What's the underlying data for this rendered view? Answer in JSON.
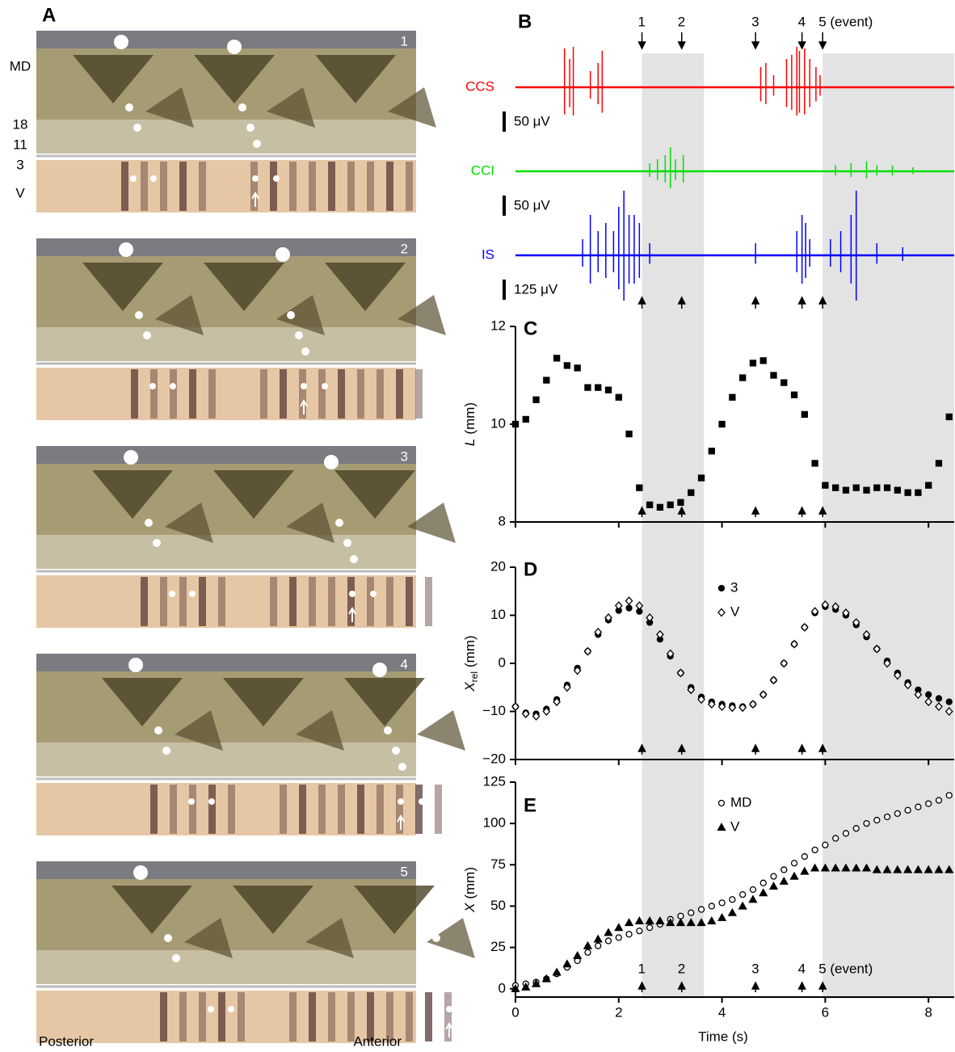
{
  "panel_a": {
    "title": "A",
    "labels": [
      "MD",
      "18",
      "11",
      "3",
      "V"
    ],
    "frames": [
      "1",
      "2",
      "3",
      "4",
      "5"
    ],
    "posterior": "Posterior",
    "anterior": "Anterior"
  },
  "chart_data": [
    {
      "type": "trace",
      "title": "B",
      "xlim": [
        0,
        8.5
      ],
      "events": {
        "x": [
          2.45,
          3.22,
          4.65,
          5.55,
          5.95
        ],
        "labels": [
          "1",
          "2",
          "3",
          "4",
          "5 (event)"
        ]
      },
      "shaded": [
        [
          2.45,
          3.65
        ],
        [
          5.95,
          8.5
        ]
      ],
      "series": [
        {
          "name": "CCS",
          "color": "#ff0000",
          "scale_bar": {
            "value": 50,
            "label": "50 μV"
          },
          "x": [
            0.95,
            1.05,
            1.12,
            1.45,
            1.6,
            1.68,
            4.75,
            4.85,
            5.0,
            5.25,
            5.35,
            5.45,
            5.5,
            5.6,
            5.7,
            5.82,
            5.9
          ],
          "values": [
            96,
            70,
            100,
            40,
            60,
            90,
            50,
            60,
            30,
            70,
            80,
            100,
            90,
            96,
            70,
            50,
            30
          ]
        },
        {
          "name": "CCI",
          "color": "#00e000",
          "scale_bar": {
            "value": 50,
            "label": "50 μV"
          },
          "x": [
            2.6,
            2.75,
            2.9,
            3.0,
            3.1,
            3.25,
            6.2,
            6.5,
            6.8,
            7.0,
            7.3,
            7.7
          ],
          "values": [
            20,
            30,
            40,
            60,
            30,
            40,
            15,
            20,
            25,
            15,
            15,
            10
          ]
        },
        {
          "name": "IS",
          "color": "#0000ff",
          "scale_bar": {
            "value": 125,
            "label": "125 μV"
          },
          "x": [
            1.3,
            1.45,
            1.6,
            1.75,
            1.9,
            2.0,
            2.1,
            2.2,
            2.3,
            2.4,
            2.6,
            4.65,
            5.45,
            5.55,
            5.62,
            5.7,
            6.1,
            6.3,
            6.5,
            6.6,
            7.0,
            7.5
          ],
          "values": [
            100,
            250,
            150,
            200,
            150,
            300,
            400,
            250,
            250,
            200,
            75,
            75,
            150,
            250,
            200,
            100,
            100,
            150,
            250,
            400,
            75,
            50
          ]
        }
      ]
    },
    {
      "type": "scatter",
      "title": "C",
      "xlim": [
        0,
        8.5
      ],
      "xticks": [
        0,
        2,
        4,
        6,
        8
      ],
      "ylim": [
        8,
        12
      ],
      "yticks": [
        8,
        10,
        12
      ],
      "ylabel": {
        "symbol": "L",
        "unit": "(mm)"
      },
      "x": [
        0,
        0.2,
        0.4,
        0.6,
        0.8,
        1.0,
        1.2,
        1.4,
        1.6,
        1.8,
        2.0,
        2.2,
        2.4,
        2.6,
        2.8,
        3.0,
        3.2,
        3.4,
        3.6,
        3.8,
        4.0,
        4.2,
        4.4,
        4.6,
        4.8,
        5.0,
        5.2,
        5.4,
        5.6,
        5.8,
        6.0,
        6.2,
        6.4,
        6.6,
        6.8,
        7.0,
        7.2,
        7.4,
        7.6,
        7.8,
        8.0,
        8.2,
        8.4
      ],
      "series": [
        {
          "color": "#000000",
          "marker": "square",
          "filled": true,
          "values": [
            10.0,
            10.1,
            10.5,
            10.9,
            11.35,
            11.2,
            11.15,
            10.75,
            10.75,
            10.7,
            10.55,
            9.8,
            8.7,
            8.35,
            8.3,
            8.35,
            8.4,
            8.6,
            8.9,
            9.45,
            10.0,
            10.55,
            10.95,
            11.25,
            11.3,
            11.0,
            10.85,
            10.6,
            10.2,
            9.2,
            8.75,
            8.7,
            8.65,
            8.7,
            8.65,
            8.7,
            8.7,
            8.65,
            8.6,
            8.6,
            8.75,
            9.2,
            10.15
          ]
        }
      ]
    },
    {
      "type": "scatter",
      "title": "D",
      "xlim": [
        0,
        8.5
      ],
      "xticks": [
        0,
        2,
        4,
        6,
        8
      ],
      "ylim": [
        -20,
        20
      ],
      "yticks": [
        {
          "value": -20,
          "label": "−20"
        },
        {
          "value": -10,
          "label": "−10"
        },
        0,
        10,
        20
      ],
      "ylabel": {
        "symbol": "X",
        "sub": "rel",
        "unit": "(mm)"
      },
      "x": [
        0,
        0.2,
        0.4,
        0.6,
        0.8,
        1.0,
        1.2,
        1.4,
        1.6,
        1.8,
        2.0,
        2.2,
        2.4,
        2.6,
        2.8,
        3.0,
        3.2,
        3.4,
        3.6,
        3.8,
        4.0,
        4.2,
        4.4,
        4.6,
        4.8,
        5.0,
        5.2,
        5.4,
        5.6,
        5.8,
        6.0,
        6.2,
        6.4,
        6.6,
        6.8,
        7.0,
        7.2,
        7.4,
        7.6,
        7.8,
        8.0,
        8.2,
        8.4
      ],
      "series": [
        {
          "name": "3",
          "color": "#000000",
          "marker": "circle",
          "filled": true,
          "values": [
            -9,
            -10.3,
            -10.5,
            -9.5,
            -7.5,
            -4.5,
            -1,
            2.5,
            6,
            9,
            11,
            11.5,
            10.8,
            8.5,
            5,
            1.5,
            -2,
            -5,
            -7,
            -8,
            -8.5,
            -8.8,
            -9,
            -8.5,
            -6.5,
            -3.5,
            0,
            4,
            7.5,
            10.5,
            11.8,
            11.2,
            10,
            8,
            5.5,
            3,
            0.5,
            -2,
            -4,
            -5.5,
            -6.5,
            -7.3,
            -8
          ]
        },
        {
          "name": "V",
          "color": "#000000",
          "marker": "diamond",
          "filled": false,
          "values": [
            -9,
            -10.5,
            -11,
            -10,
            -8,
            -5,
            -1.5,
            2.5,
            6.5,
            9.5,
            12,
            13,
            12,
            9.5,
            6,
            2,
            -2,
            -5.5,
            -7.5,
            -8.5,
            -9,
            -9.2,
            -9.2,
            -8.5,
            -6.5,
            -3.5,
            0,
            4,
            7.5,
            10.8,
            12.2,
            11.8,
            10.5,
            8.5,
            6,
            3,
            0,
            -2.5,
            -4.5,
            -6.5,
            -8,
            -9,
            -10
          ]
        }
      ]
    },
    {
      "type": "scatter",
      "title": "E",
      "xlim": [
        0,
        8.5
      ],
      "xticks": [
        0,
        2,
        4,
        6,
        8
      ],
      "xlabel": "Time (s)",
      "ylim": [
        -5,
        125
      ],
      "yticks": [
        0,
        25,
        50,
        75,
        100,
        125
      ],
      "ylabel": {
        "symbol": "X",
        "unit": "(mm)"
      },
      "x": [
        0,
        0.2,
        0.4,
        0.6,
        0.8,
        1.0,
        1.2,
        1.4,
        1.6,
        1.8,
        2.0,
        2.2,
        2.4,
        2.6,
        2.8,
        3.0,
        3.2,
        3.4,
        3.6,
        3.8,
        4.0,
        4.2,
        4.4,
        4.6,
        4.8,
        5.0,
        5.2,
        5.4,
        5.6,
        5.8,
        6.0,
        6.2,
        6.4,
        6.6,
        6.8,
        7.0,
        7.2,
        7.4,
        7.6,
        7.8,
        8.0,
        8.2,
        8.4
      ],
      "series": [
        {
          "name": "MD",
          "color": "#000000",
          "marker": "circle",
          "filled": false,
          "values": [
            2,
            3,
            4,
            6,
            9,
            13,
            17,
            22,
            26,
            29,
            31,
            33,
            35,
            37,
            39,
            42,
            44,
            46,
            48,
            50,
            52,
            54,
            57,
            60,
            64,
            68,
            72,
            76,
            80,
            84,
            87,
            91,
            94,
            97,
            100,
            102,
            104,
            106,
            108,
            110,
            112,
            114,
            117
          ]
        },
        {
          "name": "V",
          "color": "#000000",
          "marker": "triangle",
          "filled": true,
          "values": [
            0,
            1,
            3,
            6,
            10,
            15,
            20,
            26,
            30,
            34,
            37,
            40,
            41,
            41,
            41,
            40,
            40,
            40,
            40,
            41,
            43,
            46,
            50,
            54,
            58,
            62,
            65,
            68,
            71,
            73,
            73,
            73,
            73,
            73,
            73,
            72,
            72,
            72,
            72,
            72,
            72,
            72,
            72
          ]
        }
      ]
    }
  ]
}
